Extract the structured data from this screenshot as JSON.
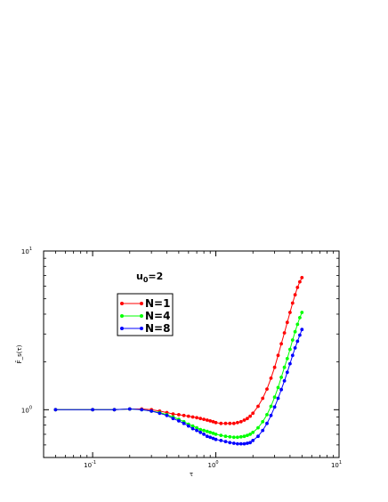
{
  "chart_data": {
    "type": "line",
    "xscale": "log",
    "yscale": "log",
    "xlim": [
      0.04,
      10
    ],
    "ylim": [
      0.5,
      10
    ],
    "xlabel": "τ",
    "ylabel": "F̄_s(τ)",
    "x_ticks": [
      {
        "value": 0.1,
        "base": "10",
        "exp": "-1"
      },
      {
        "value": 1,
        "base": "10",
        "exp": "0"
      },
      {
        "value": 10,
        "base": "10",
        "exp": "1"
      }
    ],
    "y_ticks": [
      {
        "value": 1,
        "base": "10",
        "exp": "0"
      },
      {
        "value": 10,
        "base": "10",
        "exp": "1"
      }
    ],
    "annotation": {
      "base": "u",
      "sub": "0",
      "rest": "=2"
    },
    "legend_position": "upper-left",
    "grid": false,
    "series": [
      {
        "name": "N=1",
        "color": "#ff0000",
        "x": [
          0.05,
          0.1,
          0.15,
          0.2,
          0.25,
          0.3,
          0.35,
          0.4,
          0.45,
          0.5,
          0.55,
          0.6,
          0.65,
          0.7,
          0.75,
          0.8,
          0.85,
          0.9,
          0.95,
          1.0,
          1.1,
          1.2,
          1.3,
          1.4,
          1.5,
          1.6,
          1.7,
          1.8,
          1.9,
          2.0,
          2.2,
          2.4,
          2.6,
          2.8,
          3.0,
          3.2,
          3.4,
          3.6,
          3.8,
          4.0,
          4.2,
          4.4,
          4.6,
          4.8,
          5.0
        ],
        "y": [
          1.0,
          1.0,
          1.0,
          1.01,
          1.01,
          1.0,
          0.98,
          0.96,
          0.94,
          0.93,
          0.92,
          0.91,
          0.9,
          0.89,
          0.88,
          0.87,
          0.86,
          0.85,
          0.84,
          0.83,
          0.82,
          0.82,
          0.82,
          0.82,
          0.83,
          0.84,
          0.86,
          0.88,
          0.91,
          0.95,
          1.05,
          1.18,
          1.35,
          1.58,
          1.85,
          2.2,
          2.6,
          3.05,
          3.55,
          4.1,
          4.7,
          5.3,
          5.9,
          6.4,
          6.8
        ]
      },
      {
        "name": "N=4",
        "color": "#00ff00",
        "x": [
          0.05,
          0.1,
          0.15,
          0.2,
          0.25,
          0.3,
          0.35,
          0.4,
          0.45,
          0.5,
          0.55,
          0.6,
          0.65,
          0.7,
          0.75,
          0.8,
          0.85,
          0.9,
          0.95,
          1.0,
          1.1,
          1.2,
          1.3,
          1.4,
          1.5,
          1.6,
          1.7,
          1.8,
          1.9,
          2.0,
          2.2,
          2.4,
          2.6,
          2.8,
          3.0,
          3.2,
          3.4,
          3.6,
          3.8,
          4.0,
          4.2,
          4.4,
          4.6,
          4.8,
          5.0
        ],
        "y": [
          1.0,
          1.0,
          1.0,
          1.01,
          1.0,
          0.98,
          0.96,
          0.93,
          0.9,
          0.87,
          0.84,
          0.81,
          0.79,
          0.77,
          0.75,
          0.74,
          0.73,
          0.72,
          0.71,
          0.7,
          0.69,
          0.68,
          0.675,
          0.67,
          0.67,
          0.675,
          0.68,
          0.69,
          0.7,
          0.72,
          0.77,
          0.84,
          0.93,
          1.05,
          1.2,
          1.38,
          1.6,
          1.85,
          2.1,
          2.4,
          2.75,
          3.1,
          3.45,
          3.8,
          4.1
        ]
      },
      {
        "name": "N=8",
        "color": "#0000ff",
        "x": [
          0.05,
          0.1,
          0.15,
          0.2,
          0.25,
          0.3,
          0.35,
          0.4,
          0.45,
          0.5,
          0.55,
          0.6,
          0.65,
          0.7,
          0.75,
          0.8,
          0.85,
          0.9,
          0.95,
          1.0,
          1.1,
          1.2,
          1.3,
          1.4,
          1.5,
          1.6,
          1.7,
          1.8,
          1.9,
          2.0,
          2.2,
          2.4,
          2.6,
          2.8,
          3.0,
          3.2,
          3.4,
          3.6,
          3.8,
          4.0,
          4.2,
          4.4,
          4.6,
          4.8,
          5.0
        ],
        "y": [
          1.0,
          1.0,
          1.0,
          1.01,
          1.0,
          0.98,
          0.95,
          0.92,
          0.88,
          0.85,
          0.82,
          0.79,
          0.76,
          0.74,
          0.72,
          0.7,
          0.68,
          0.67,
          0.66,
          0.65,
          0.64,
          0.63,
          0.62,
          0.615,
          0.61,
          0.61,
          0.61,
          0.615,
          0.62,
          0.64,
          0.68,
          0.74,
          0.82,
          0.92,
          1.04,
          1.18,
          1.34,
          1.52,
          1.72,
          1.95,
          2.2,
          2.45,
          2.7,
          2.95,
          3.2
        ]
      }
    ]
  }
}
